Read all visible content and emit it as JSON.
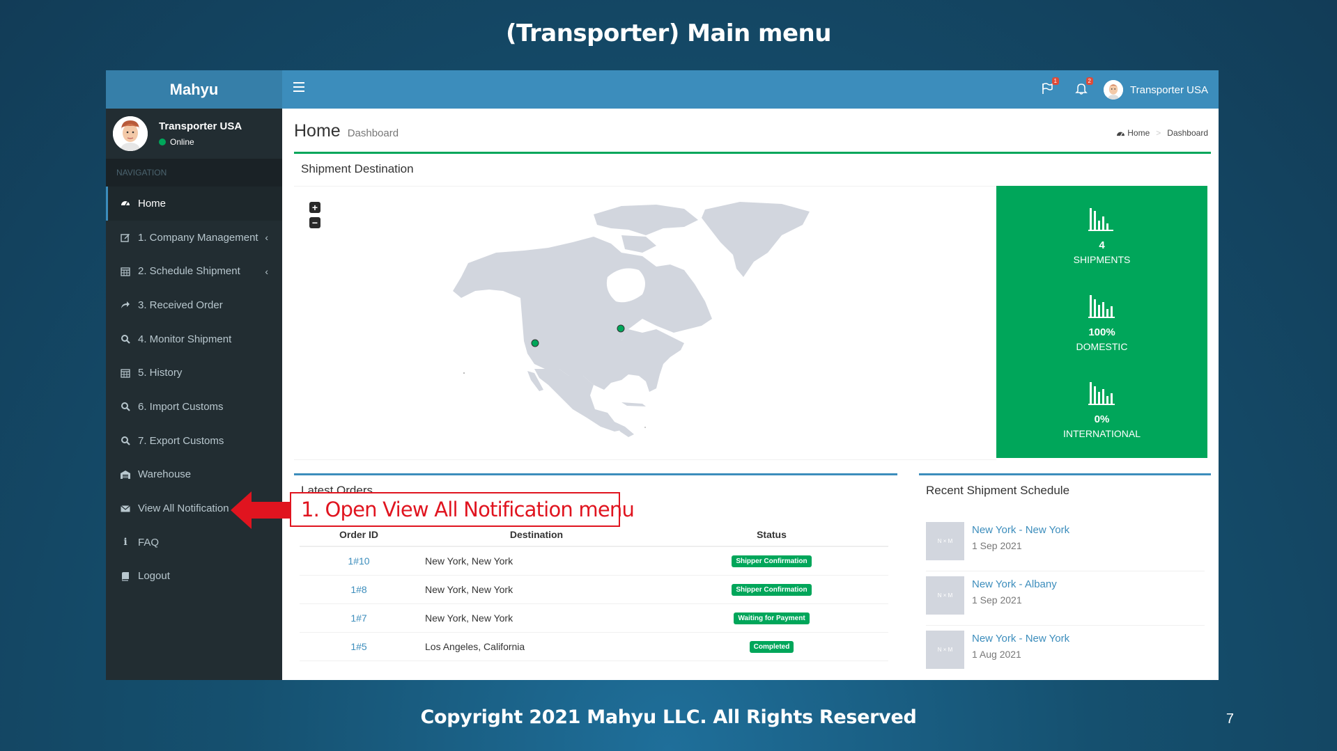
{
  "slide": {
    "title": "(Transporter) Main menu",
    "footer": "Copyright 2021 Mahyu LLC. All Rights Reserved",
    "page_number": "7"
  },
  "app": {
    "brand": "Mahyu",
    "user": {
      "name": "Transporter USA",
      "status": "Online"
    },
    "nav_header": "NAVIGATION",
    "nav_items": [
      {
        "label": "Home",
        "icon": "dashboard-icon"
      },
      {
        "label": "1. Company Management",
        "icon": "edit-icon"
      },
      {
        "label": "2. Schedule Shipment",
        "icon": "calendar-icon"
      },
      {
        "label": "3. Received Order",
        "icon": "share-icon"
      },
      {
        "label": "4. Monitor Shipment",
        "icon": "search-icon"
      },
      {
        "label": "5. History",
        "icon": "calendar-icon"
      },
      {
        "label": "6. Import Customs",
        "icon": "search-icon"
      },
      {
        "label": "7. Export Customs",
        "icon": "search-icon"
      },
      {
        "label": "Warehouse",
        "icon": "warehouse-icon"
      },
      {
        "label": "View All Notification",
        "icon": "envelope-icon"
      },
      {
        "label": "FAQ",
        "icon": "info-icon"
      },
      {
        "label": "Logout",
        "icon": "book-icon"
      }
    ],
    "topbar": {
      "flag_badge": "1",
      "bell_badge": "2",
      "user_name": "Transporter USA"
    },
    "header": {
      "title": "Home",
      "subtitle": "Dashboard"
    },
    "breadcrumb": {
      "home": "Home",
      "current": "Dashboard"
    },
    "map_box": {
      "title": "Shipment Destination",
      "zoom_in": "+",
      "zoom_out": "−",
      "stats": [
        {
          "value": "4",
          "label": "SHIPMENTS"
        },
        {
          "value": "100%",
          "label": "DOMESTIC"
        },
        {
          "value": "0%",
          "label": "INTERNATIONAL"
        }
      ],
      "colors": {
        "stats_bg": "#00a65a",
        "land": "#d2d6de",
        "marker": "#00a65a"
      }
    },
    "orders_box": {
      "title": "Latest Orders",
      "columns": [
        "Order ID",
        "Destination",
        "Status"
      ],
      "rows": [
        {
          "id": "1#10",
          "destination": "New York, New York",
          "status": "Shipper Confirmation"
        },
        {
          "id": "1#8",
          "destination": "New York, New York",
          "status": "Shipper Confirmation"
        },
        {
          "id": "1#7",
          "destination": "New York, New York",
          "status": "Waiting for Payment"
        },
        {
          "id": "1#5",
          "destination": "Los Angeles, California",
          "status": "Completed"
        }
      ]
    },
    "schedule_box": {
      "title": "Recent Shipment Schedule",
      "thumb_text": "N × M",
      "items": [
        {
          "route": "New York - New York",
          "date": "1 Sep 2021"
        },
        {
          "route": "New York - Albany",
          "date": "1 Sep 2021"
        },
        {
          "route": "New York - New York",
          "date": "1 Aug 2021"
        }
      ]
    }
  },
  "annotation": {
    "text": "1. Open View All Notification menu",
    "color": "#e0141f"
  }
}
